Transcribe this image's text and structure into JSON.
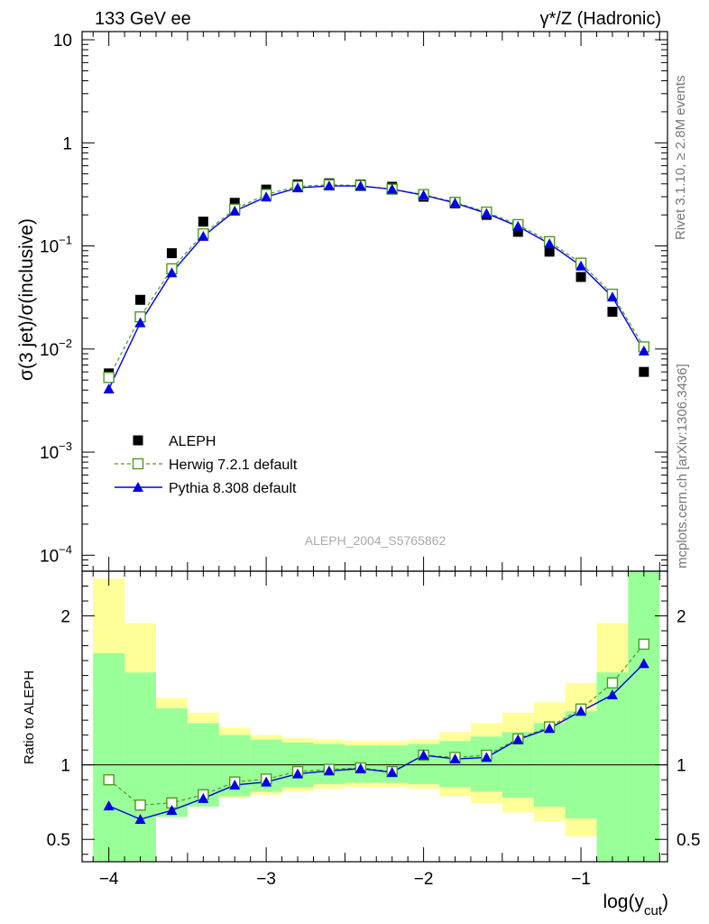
{
  "header": {
    "left": "133 GeV ee",
    "right": "γ*/Z (Hadronic)"
  },
  "side_labels": {
    "rivet": "Rivet 3.1.10, ≥ 2.8M events",
    "mcplots": "mcplots.cern.ch [arXiv:1306.3436]"
  },
  "analysis_id": "ALEPH_2004_S5765862",
  "chart_data": [
    {
      "type": "line",
      "ylabel": "σ(3 jet)/σ(inclusive)",
      "yscale": "log",
      "ylim": [
        7e-05,
        12
      ],
      "xlim": [
        -4.17,
        -0.45
      ],
      "yticks": [
        0.0001,
        0.001,
        0.01,
        0.1,
        1,
        10
      ],
      "ytick_labels": [
        {
          "base": "10",
          "exp": "−4"
        },
        {
          "base": "10",
          "exp": "−3"
        },
        {
          "base": "10",
          "exp": "−2"
        },
        {
          "base": "10",
          "exp": "−1"
        },
        {
          "base": "1",
          "exp": ""
        },
        {
          "base": "10",
          "exp": ""
        }
      ],
      "x": [
        -4.0,
        -3.8,
        -3.6,
        -3.4,
        -3.2,
        -3.0,
        -2.8,
        -2.6,
        -2.4,
        -2.2,
        -2.0,
        -1.8,
        -1.6,
        -1.4,
        -1.2,
        -1.0,
        -0.8,
        -0.6
      ],
      "legend_placement": "lower-left",
      "series": [
        {
          "name": "ALEPH",
          "marker": "square-filled",
          "color": "#000000",
          "values": [
            0.0058,
            0.03,
            0.085,
            0.172,
            0.262,
            0.352,
            0.395,
            0.405,
            0.395,
            0.375,
            0.3,
            0.258,
            0.2,
            0.137,
            0.088,
            0.05,
            0.023,
            0.006
          ]
        },
        {
          "name": "Herwig 7.2.1 default",
          "marker": "square-open",
          "line": "dashed",
          "color": "#4f9a1f",
          "values": [
            0.0053,
            0.0205,
            0.06,
            0.131,
            0.227,
            0.316,
            0.378,
            0.392,
            0.385,
            0.355,
            0.315,
            0.265,
            0.213,
            0.161,
            0.11,
            0.068,
            0.034,
            0.0105
          ]
        },
        {
          "name": "Pythia 8.308 default",
          "marker": "triangle-filled",
          "line": "solid",
          "color": "#0000e6",
          "values": [
            0.0041,
            0.018,
            0.055,
            0.124,
            0.218,
            0.299,
            0.366,
            0.382,
            0.381,
            0.355,
            0.311,
            0.261,
            0.207,
            0.155,
            0.105,
            0.064,
            0.032,
            0.0096
          ]
        }
      ]
    },
    {
      "type": "line",
      "ylabel": "Ratio to ALEPH",
      "xlabel_main": "log(y",
      "xlabel_sub": "cut",
      "xlabel_end": ")",
      "ylim": [
        0.35,
        2.3
      ],
      "xlim": [
        -4.17,
        -0.45
      ],
      "yticks": [
        0.5,
        1,
        2
      ],
      "ytick_labels": [
        "0.5",
        "1",
        "2"
      ],
      "xticks": [
        -4,
        -3,
        -2,
        -1
      ],
      "xtick_labels": [
        "−4",
        "−3",
        "−2",
        "−1"
      ],
      "bin_edges": [
        -4.1,
        -3.9,
        -3.7,
        -3.5,
        -3.3,
        -3.1,
        -2.9,
        -2.7,
        -2.5,
        -2.3,
        -2.1,
        -1.9,
        -1.7,
        -1.5,
        -1.3,
        -1.1,
        -0.9,
        -0.7,
        -0.5
      ],
      "band_green": [
        [
          0.2,
          1.75
        ],
        [
          0.35,
          1.62
        ],
        [
          0.65,
          1.38
        ],
        [
          0.72,
          1.28
        ],
        [
          0.79,
          1.2
        ],
        [
          0.82,
          1.17
        ],
        [
          0.85,
          1.15
        ],
        [
          0.87,
          1.14
        ],
        [
          0.88,
          1.13
        ],
        [
          0.88,
          1.13
        ],
        [
          0.87,
          1.14
        ],
        [
          0.85,
          1.16
        ],
        [
          0.82,
          1.19
        ],
        [
          0.78,
          1.22
        ],
        [
          0.72,
          1.28
        ],
        [
          0.64,
          1.36
        ],
        [
          0.3,
          1.62
        ],
        [
          0.2,
          2.3
        ]
      ],
      "band_yellow": [
        [
          0.2,
          2.25
        ],
        [
          0.2,
          1.95
        ],
        [
          0.68,
          1.45
        ],
        [
          0.73,
          1.35
        ],
        [
          0.78,
          1.25
        ],
        [
          0.8,
          1.2
        ],
        [
          0.82,
          1.18
        ],
        [
          0.84,
          1.17
        ],
        [
          0.85,
          1.16
        ],
        [
          0.85,
          1.16
        ],
        [
          0.84,
          1.17
        ],
        [
          0.79,
          1.22
        ],
        [
          0.74,
          1.28
        ],
        [
          0.68,
          1.35
        ],
        [
          0.62,
          1.42
        ],
        [
          0.52,
          1.55
        ],
        [
          0.34,
          1.95
        ],
        [
          0.2,
          2.3
        ]
      ],
      "band_colors": {
        "green": "#99ff99",
        "yellow": "#ffff99"
      },
      "x": [
        -4.0,
        -3.8,
        -3.6,
        -3.4,
        -3.2,
        -3.0,
        -2.8,
        -2.6,
        -2.4,
        -2.2,
        -2.0,
        -1.8,
        -1.6,
        -1.4,
        -1.2,
        -1.0,
        -0.8,
        -0.6
      ],
      "series": [
        {
          "name": "Herwig 7.2.1 default",
          "marker": "square-open",
          "line": "dashed",
          "color": "#4f9a1f",
          "values": [
            0.9,
            0.73,
            0.745,
            0.8,
            0.885,
            0.905,
            0.955,
            0.97,
            0.98,
            0.955,
            1.065,
            1.05,
            1.065,
            1.175,
            1.255,
            1.375,
            1.55,
            1.81
          ]
        },
        {
          "name": "Pythia 8.308 default",
          "marker": "triangle-filled",
          "line": "solid",
          "color": "#0000e6",
          "values": [
            0.725,
            0.635,
            0.695,
            0.775,
            0.865,
            0.885,
            0.94,
            0.96,
            0.975,
            0.95,
            1.065,
            1.04,
            1.05,
            1.17,
            1.245,
            1.36,
            1.47,
            1.68
          ]
        }
      ]
    }
  ]
}
